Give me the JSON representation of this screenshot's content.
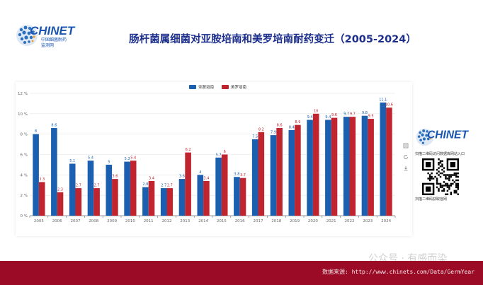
{
  "header": {
    "title": "肠杆菌属细菌对亚胺培南和美罗培南耐药变迁（2005-2024）",
    "logo_brand": "CHINET",
    "logo_sub1": "中国细菌耐药",
    "logo_sub2": "监测网"
  },
  "side_panel": {
    "brand": "CHINET",
    "qr1_label": "扫描二维码访问数据库网站入口",
    "qr2_label": "扫描二维码获取官网"
  },
  "toolbox": {
    "icons": [
      "data-view-icon",
      "refresh-icon",
      "download-icon"
    ]
  },
  "watermark": "公众号 · 有感而染",
  "footer": {
    "source": "数据来源: http://www.chinets.com/Data/GermYear"
  },
  "colors": {
    "imipenem": "#1a5fb0",
    "meropenem": "#c0242f",
    "title": "#1d2f8c",
    "footer": "#9b0b26"
  },
  "chart_data": {
    "type": "bar",
    "title": "",
    "xlabel": "",
    "ylabel": "",
    "ylim": [
      0,
      12
    ],
    "yticks": [
      "0 %",
      "2 %",
      "4 %",
      "6 %",
      "8 %",
      "10 %",
      "12 %"
    ],
    "grid": true,
    "legend_position": "top-center",
    "categories": [
      "2005",
      "2006",
      "2007",
      "2008",
      "2009",
      "2010",
      "2011",
      "2012",
      "2013",
      "2014",
      "2015",
      "2016",
      "2017",
      "2018",
      "2019",
      "2020",
      "2021",
      "2022",
      "2023",
      "2024"
    ],
    "series": [
      {
        "name": "亚胺培南",
        "color": "#1a5fb0",
        "values": [
          8,
          8.6,
          5.1,
          5.4,
          5,
          5.3,
          2.8,
          2.7,
          3.6,
          4,
          5.7,
          3.8,
          7.5,
          7.9,
          8.4,
          9.4,
          9.4,
          9.7,
          9.8,
          11.1
        ],
        "labels": [
          "8",
          "8.6",
          "5.1",
          "5.4",
          "5",
          "5.3",
          "2.8",
          "2.7",
          "3.6",
          "4",
          "5.7",
          "3.8",
          "7.5",
          "7.9",
          "8.4",
          "9.4",
          "9.4",
          "9.7",
          "9.8",
          "11.1"
        ]
      },
      {
        "name": "美罗培南",
        "color": "#c0242f",
        "values": [
          3.3,
          2.3,
          2.7,
          2.7,
          3.6,
          5.4,
          3.4,
          2.7,
          6.2,
          3.4,
          6,
          3.7,
          8.2,
          8.6,
          8.9,
          10,
          9.6,
          9.7,
          9.5,
          10.6
        ],
        "labels": [
          "3.3",
          "2.3",
          "2.7",
          "2.7",
          "3.6",
          "5.4",
          "3.4",
          "2.7",
          "6.2",
          "3.4",
          "6",
          "3.7",
          "8.2",
          "8.6",
          "8.9",
          "10",
          "9.6",
          "9.7",
          "9.5",
          "10.6"
        ]
      }
    ]
  }
}
